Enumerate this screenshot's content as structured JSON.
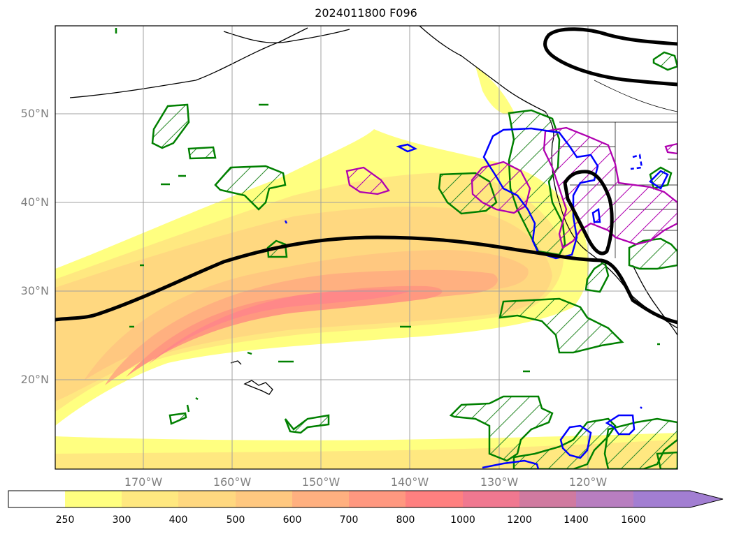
{
  "title": "2024011800 F096",
  "lat_labels": [
    "50°N",
    "40°N",
    "30°N",
    "20°N"
  ],
  "lon_labels": [
    "170°W",
    "160°W",
    "150°W",
    "140°W",
    "130°W",
    "120°W"
  ],
  "colorbar": {
    "ticks": [
      "250",
      "300",
      "400",
      "500",
      "600",
      "700",
      "800",
      "1000",
      "1200",
      "1400",
      "1600"
    ],
    "colors": [
      "#ffffff",
      "#ffff80",
      "#ffe880",
      "#ffd880",
      "#ffc880",
      "#ffb080",
      "#ff9880",
      "#ff8080",
      "#f07890",
      "#d07aa0",
      "#b87ec0",
      "#a27ed2"
    ],
    "extend": "max"
  },
  "legend_colors": {
    "contour_black": "#000000",
    "contour_green": "#008000",
    "contour_blue": "#0000ff",
    "contour_magenta": "#b000b0"
  }
}
